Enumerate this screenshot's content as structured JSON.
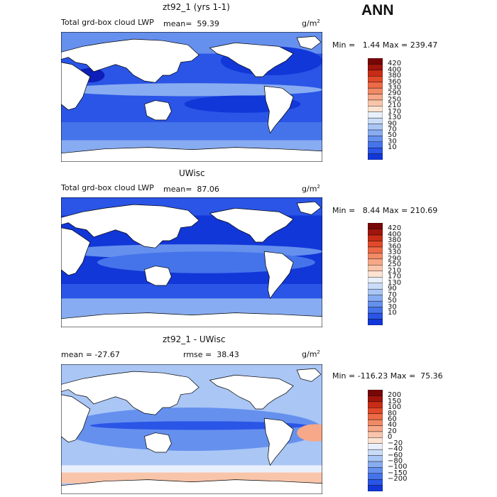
{
  "season": "ANN",
  "units": "g/m",
  "units_sup": "2",
  "colors": {
    "frame": "#000000",
    "land": "#ffffff",
    "abs_scale": [
      "#08087a",
      "#0d1fb8",
      "#1237d8",
      "#2a55e6",
      "#4574ea",
      "#6590ee",
      "#88acf1",
      "#a9c6f5",
      "#cadcf8",
      "#e9f0fb",
      "#fde3d2",
      "#f9c5aa",
      "#f6a888",
      "#f28a66",
      "#ec6a46",
      "#e14a2a",
      "#c82c16",
      "#a0140c",
      "#780606"
    ],
    "diff_scale": [
      "#08087a",
      "#0d1fb8",
      "#1237d8",
      "#2a55e6",
      "#4574ea",
      "#6590ee",
      "#88acf1",
      "#a9c6f5",
      "#cadcf8",
      "#e9f0fb",
      "#fde3d2",
      "#f9c5aa",
      "#f6a888",
      "#f28a66",
      "#ec6a46",
      "#e14a2a",
      "#c82c16",
      "#a0140c",
      "#780606"
    ]
  },
  "panels": [
    {
      "title": "zt92_1 (yrs 1-1)",
      "field_label": "Total grd-box cloud LWP",
      "stat_label": "mean=",
      "stat_value": "59.39",
      "min_label": "Min =",
      "min_value": "1.44",
      "max_label": "Max =",
      "max_value": "239.47",
      "contour_levels": [
        "420",
        "400",
        "380",
        "360",
        "330",
        "290",
        "250",
        "210",
        "170",
        "130",
        "90",
        "70",
        "50",
        "30",
        "10"
      ]
    },
    {
      "title": "UWisc",
      "field_label": "Total grd-box cloud LWP",
      "stat_label": "mean=",
      "stat_value": "87.06",
      "min_label": "Min =",
      "min_value": "8.44",
      "max_label": "Max =",
      "max_value": "210.69",
      "contour_levels": [
        "420",
        "400",
        "380",
        "360",
        "330",
        "290",
        "250",
        "210",
        "170",
        "130",
        "90",
        "70",
        "50",
        "30",
        "10"
      ]
    },
    {
      "title": "zt92_1 - UWisc",
      "mean_label": "mean =",
      "mean_value": "-27.67",
      "rmse_label": "rmse =",
      "rmse_value": "38.43",
      "min_label": "Min =",
      "min_value": "-116.23",
      "max_label": "Max =",
      "max_value": "75.36",
      "contour_levels": [
        "200",
        "150",
        "100",
        "80",
        "60",
        "40",
        "20",
        "0",
        "−20",
        "−40",
        "−60",
        "−80",
        "−100",
        "−150",
        "−200"
      ]
    }
  ]
}
